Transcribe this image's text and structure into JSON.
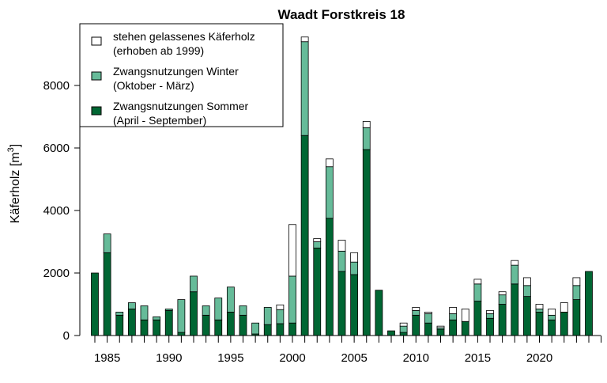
{
  "chart_data": {
    "type": "bar",
    "stacked": true,
    "title": "Waadt Forstkreis 18",
    "ylabel": "Käferholz [m",
    "ylabel_superscript": "3",
    "ylabel_suffix": "]",
    "xlabel": "",
    "ylim": [
      0,
      9600
    ],
    "yticks": [
      0,
      2000,
      4000,
      6000,
      8000
    ],
    "xticks": [
      1985,
      1990,
      1995,
      2000,
      2005,
      2010,
      2015,
      2020
    ],
    "grid": false,
    "legend_position": "top-left",
    "x": [
      1984,
      1985,
      1986,
      1987,
      1988,
      1989,
      1990,
      1991,
      1992,
      1993,
      1994,
      1995,
      1996,
      1997,
      1998,
      1999,
      2000,
      2001,
      2002,
      2003,
      2004,
      2005,
      2006,
      2007,
      2008,
      2009,
      2010,
      2011,
      2012,
      2013,
      2014,
      2015,
      2016,
      2017,
      2018,
      2019,
      2020,
      2021,
      2022,
      2023,
      2024
    ],
    "series": [
      {
        "name": "Zwangsnutzungen Sommer (April - September)",
        "color": "#006633",
        "values": [
          2000,
          2650,
          650,
          850,
          500,
          500,
          800,
          100,
          1400,
          650,
          500,
          750,
          650,
          50,
          350,
          380,
          400,
          6400,
          2800,
          3750,
          2050,
          1950,
          5950,
          1450,
          150,
          100,
          650,
          400,
          200,
          500,
          450,
          1100,
          550,
          1000,
          1650,
          1250,
          750,
          500,
          750,
          1150,
          2050
        ]
      },
      {
        "name": "Zwangsnutzungen Winter (Oktober - März)",
        "color": "#66bb99",
        "values": [
          0,
          600,
          100,
          200,
          450,
          100,
          50,
          1050,
          500,
          300,
          700,
          800,
          300,
          350,
          550,
          450,
          1500,
          3000,
          200,
          1650,
          650,
          400,
          700,
          0,
          0,
          200,
          150,
          300,
          50,
          200,
          0,
          550,
          150,
          300,
          600,
          350,
          100,
          150,
          0,
          450,
          0
        ]
      },
      {
        "name": "stehen gelassenes Käferholz (erhoben ab 1999)",
        "color": "#ffffff",
        "values": [
          0,
          0,
          0,
          0,
          0,
          0,
          0,
          0,
          0,
          0,
          0,
          0,
          0,
          0,
          0,
          150,
          1650,
          150,
          100,
          250,
          350,
          300,
          200,
          0,
          0,
          100,
          100,
          50,
          50,
          200,
          400,
          150,
          100,
          100,
          150,
          250,
          150,
          200,
          300,
          250,
          0
        ]
      }
    ],
    "legend": [
      {
        "line1": "stehen gelassenes Käferholz",
        "line2": "(erhoben ab 1999)",
        "color": "#ffffff"
      },
      {
        "line1": "Zwangsnutzungen Winter",
        "line2": "(Oktober - März)",
        "color": "#66bb99"
      },
      {
        "line1": "Zwangsnutzungen Sommer",
        "line2": "(April - September)",
        "color": "#006633"
      }
    ]
  }
}
